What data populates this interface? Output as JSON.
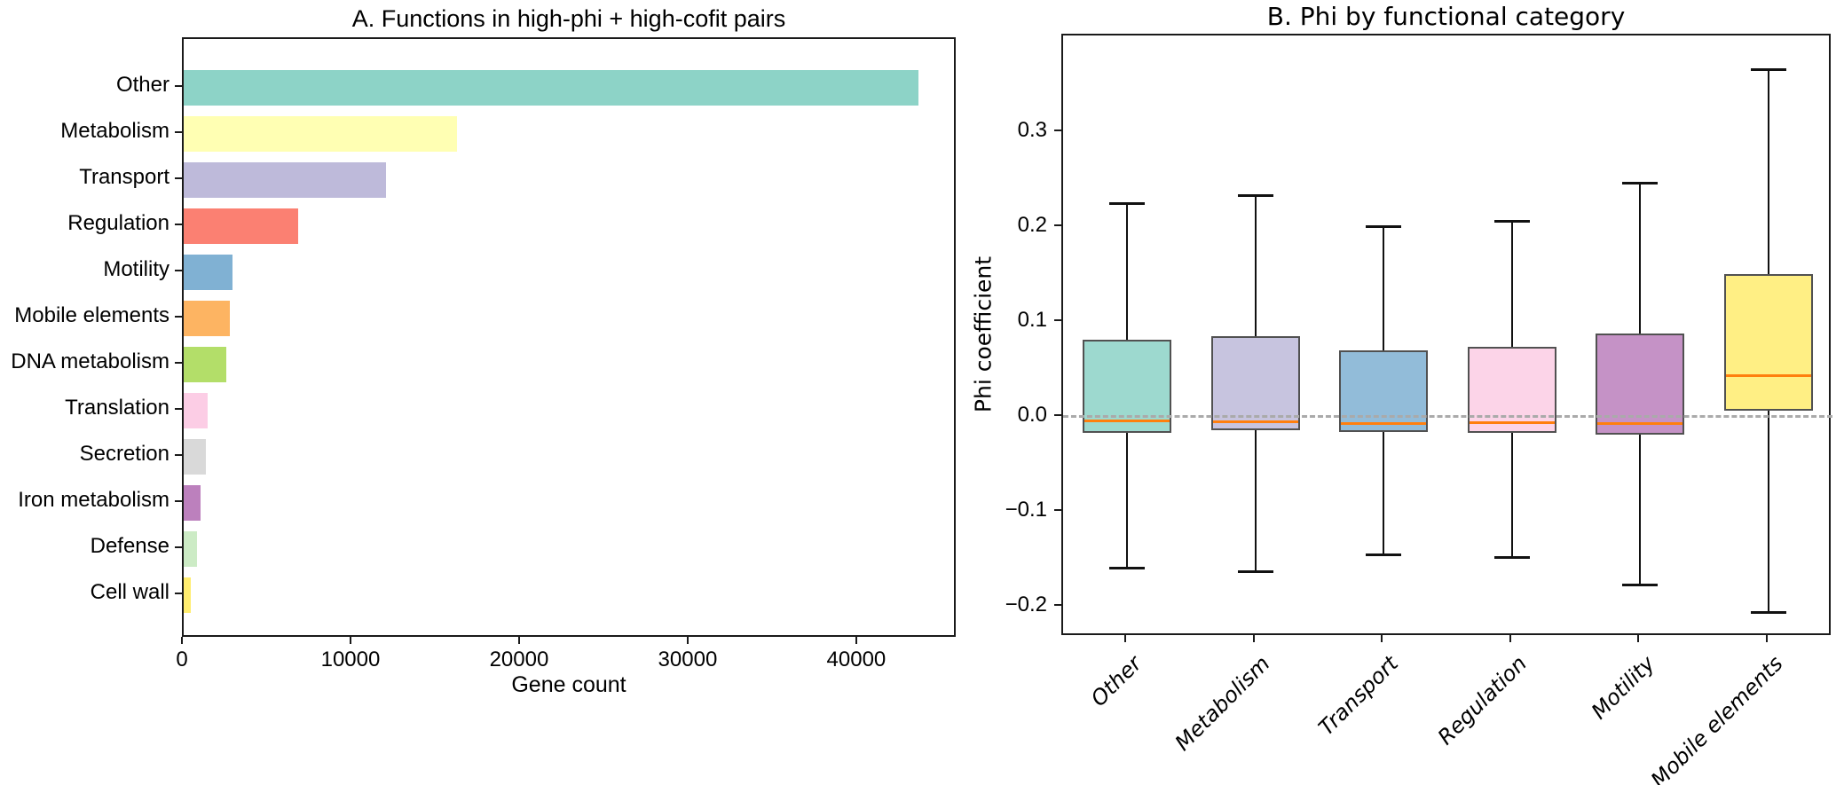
{
  "figure": {
    "background": "#ffffff",
    "spine_color": "#1a1a1a",
    "median_color": "#ff7f0e",
    "zero_line_color": "#aaaaaa"
  },
  "chart_data": [
    {
      "type": "bar",
      "orientation": "horizontal",
      "title": "A. Functions in high-phi + high-cofit pairs",
      "xlabel": "Gene count",
      "ylabel": "",
      "categories": [
        "Other",
        "Metabolism",
        "Transport",
        "Regulation",
        "Motility",
        "Mobile elements",
        "DNA metabolism",
        "Translation",
        "Secretion",
        "Iron metabolism",
        "Defense",
        "Cell wall"
      ],
      "values": [
        43600,
        16200,
        12000,
        6800,
        2900,
        2750,
        2550,
        1400,
        1300,
        1000,
        800,
        400
      ],
      "bar_colors": [
        "#8dd3c7",
        "#ffffb3",
        "#bebada",
        "#fb8072",
        "#80b1d3",
        "#fdb462",
        "#b3de69",
        "#fccde5",
        "#d9d9d9",
        "#bc80bd",
        "#ccebc5",
        "#ffed6f"
      ],
      "xlim": [
        0,
        45900
      ],
      "xticks": [
        0,
        10000,
        20000,
        30000,
        40000
      ],
      "xtick_labels": [
        "0",
        "10000",
        "20000",
        "30000",
        "40000"
      ],
      "grid": false
    },
    {
      "type": "box",
      "title": "B. Phi by functional category",
      "xlabel": "",
      "ylabel": "Phi coefficient",
      "categories": [
        "Other",
        "Metabolism",
        "Transport",
        "Regulation",
        "Motility",
        "Mobile elements"
      ],
      "box_colors": [
        "#8dd3c7",
        "#bebada",
        "#80b1d3",
        "#fccde5",
        "#bc80bd",
        "#ffed6f"
      ],
      "series": [
        {
          "name": "Other",
          "whisker_low": -0.159,
          "q1": -0.017,
          "median": -0.004,
          "q3": 0.081,
          "whisker_high": 0.225
        },
        {
          "name": "Metabolism",
          "whisker_low": -0.163,
          "q1": -0.014,
          "median": -0.005,
          "q3": 0.085,
          "whisker_high": 0.234
        },
        {
          "name": "Transport",
          "whisker_low": -0.145,
          "q1": -0.016,
          "median": -0.007,
          "q3": 0.07,
          "whisker_high": 0.201
        },
        {
          "name": "Regulation",
          "whisker_low": -0.148,
          "q1": -0.017,
          "median": -0.006,
          "q3": 0.074,
          "whisker_high": 0.207
        },
        {
          "name": "Motility",
          "whisker_low": -0.177,
          "q1": -0.019,
          "median": -0.007,
          "q3": 0.088,
          "whisker_high": 0.247
        },
        {
          "name": "Mobile elements",
          "whisker_low": -0.206,
          "q1": 0.006,
          "median": 0.043,
          "q3": 0.15,
          "whisker_high": 0.366
        }
      ],
      "ylim": [
        -0.232,
        0.402
      ],
      "yticks": [
        0.3,
        0.2,
        0.1,
        0.0,
        -0.1,
        -0.2
      ],
      "ytick_labels": [
        "0.3",
        "0.2",
        "0.1",
        "0.0",
        "−0.1",
        "−0.2"
      ],
      "zero_line": {
        "y": 0.0,
        "style": "dashed",
        "color": "#aaaaaa"
      },
      "median_color": "#ff7f0e",
      "grid": false,
      "legend": null
    }
  ]
}
